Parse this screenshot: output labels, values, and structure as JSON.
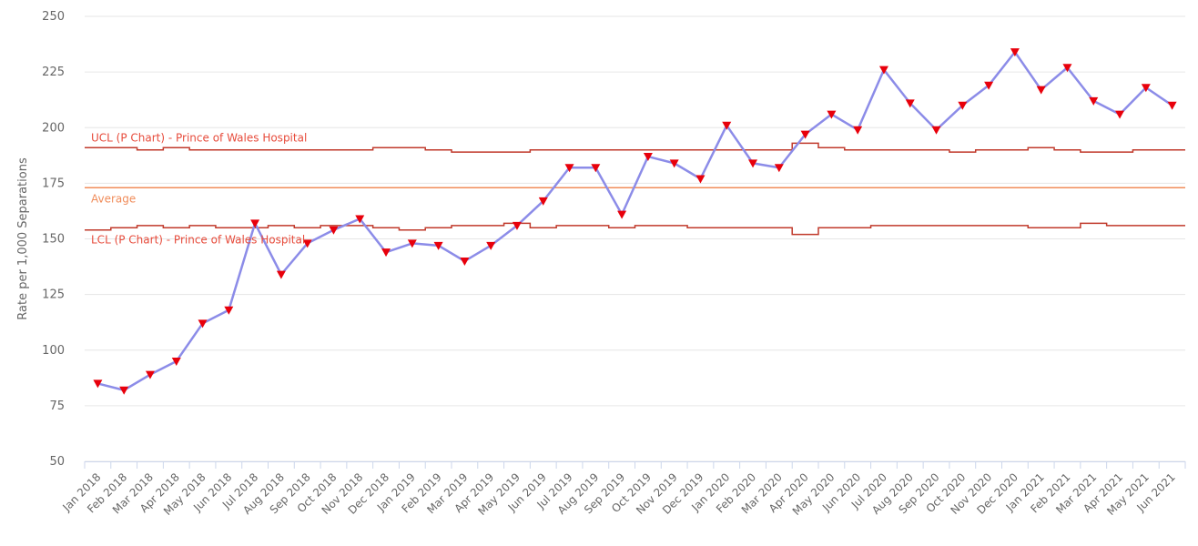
{
  "chart_data": {
    "type": "line",
    "ylabel": "Rate per 1,000 Separations",
    "ylim": [
      50,
      250
    ],
    "yticks": [
      50,
      75,
      100,
      125,
      150,
      175,
      200,
      225,
      250
    ],
    "grid": true,
    "categories": [
      "Jan 2018",
      "Feb 2018",
      "Mar 2018",
      "Apr 2018",
      "May 2018",
      "Jun 2018",
      "Jul 2018",
      "Aug 2018",
      "Sep 2018",
      "Oct 2018",
      "Nov 2018",
      "Dec 2018",
      "Jan 2019",
      "Feb 2019",
      "Mar 2019",
      "Apr 2019",
      "May 2019",
      "Jun 2019",
      "Jul 2019",
      "Aug 2019",
      "Sep 2019",
      "Oct 2019",
      "Nov 2019",
      "Dec 2019",
      "Jan 2020",
      "Feb 2020",
      "Mar 2020",
      "Apr 2020",
      "May 2020",
      "Jun 2020",
      "Jul 2020",
      "Aug 2020",
      "Sep 2020",
      "Oct 2020",
      "Nov 2020",
      "Dec 2020",
      "Jan 2021",
      "Feb 2021",
      "Mar 2021",
      "Apr 2021",
      "May 2021",
      "Jun 2021"
    ],
    "series": [
      {
        "name": "",
        "kind": "data",
        "color": "#8c8ce8",
        "marker_color": "#e8000b",
        "values": [
          85,
          82,
          89,
          95,
          112,
          118,
          157,
          134,
          148,
          154,
          159,
          144,
          148,
          147,
          140,
          147,
          156,
          167,
          182,
          182,
          161,
          187,
          184,
          177,
          201,
          184,
          182,
          197,
          206,
          199,
          226,
          211,
          199,
          210,
          219,
          234,
          217,
          227,
          212,
          206,
          218,
          210
        ]
      },
      {
        "name": "UCL (P Chart) - Prince of Wales Hospital",
        "kind": "ucl",
        "color": "#c0392b",
        "label_color": "#e74c3c",
        "values": [
          191,
          191,
          190,
          191,
          190,
          190,
          190,
          190,
          190,
          190,
          190,
          191,
          191,
          190,
          189,
          189,
          189,
          190,
          190,
          190,
          190,
          190,
          190,
          190,
          190,
          190,
          190,
          193,
          191,
          190,
          190,
          190,
          190,
          189,
          190,
          190,
          191,
          190,
          189,
          189,
          190,
          190
        ]
      },
      {
        "name": "Average",
        "kind": "average",
        "color": "#f08c5a",
        "label_color": "#f08c5a",
        "values": [
          173,
          173,
          173,
          173,
          173,
          173,
          173,
          173,
          173,
          173,
          173,
          173,
          173,
          173,
          173,
          173,
          173,
          173,
          173,
          173,
          173,
          173,
          173,
          173,
          173,
          173,
          173,
          173,
          173,
          173,
          173,
          173,
          173,
          173,
          173,
          173,
          173,
          173,
          173,
          173,
          173,
          173
        ]
      },
      {
        "name": "LCL (P Chart) - Prince of Wales Hospital",
        "kind": "lcl",
        "color": "#c0392b",
        "label_color": "#e74c3c",
        "values": [
          154,
          155,
          156,
          155,
          156,
          155,
          155,
          156,
          155,
          156,
          156,
          155,
          154,
          155,
          156,
          156,
          157,
          155,
          156,
          156,
          155,
          156,
          156,
          155,
          155,
          155,
          155,
          152,
          155,
          155,
          156,
          156,
          156,
          156,
          156,
          156,
          155,
          155,
          157,
          156,
          156,
          156
        ]
      }
    ]
  }
}
